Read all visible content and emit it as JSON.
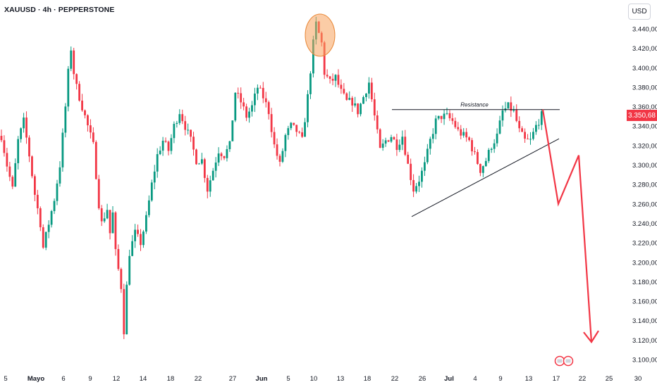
{
  "symbol": {
    "ticker": "XAUUSD",
    "timeframe": "4h",
    "broker": "PEPPERSTONE",
    "separator": "·"
  },
  "currency_label": "USD",
  "current_price_label": "3.350,68",
  "colors": {
    "up_candle": "#089981",
    "down_candle": "#f23645",
    "arrow": "#f23645",
    "highlight_fill": "#f7a35c",
    "price_badge": "#f23645",
    "trendline": "#131722"
  },
  "chart_data": {
    "type": "candlestick",
    "ylim": [
      3094,
      3464
    ],
    "y_ticks": [
      {
        "value": 3440,
        "label": "3.440,00"
      },
      {
        "value": 3420,
        "label": "3.420,00"
      },
      {
        "value": 3400,
        "label": "3.400,00"
      },
      {
        "value": 3380,
        "label": "3.380,00"
      },
      {
        "value": 3360,
        "label": "3.360,00"
      },
      {
        "value": 3340,
        "label": "3.340,00"
      },
      {
        "value": 3320,
        "label": "3.320,00"
      },
      {
        "value": 3300,
        "label": "3.300,00"
      },
      {
        "value": 3280,
        "label": "3.280,00"
      },
      {
        "value": 3260,
        "label": "3.260,00"
      },
      {
        "value": 3240,
        "label": "3.240,00"
      },
      {
        "value": 3220,
        "label": "3.220,00"
      },
      {
        "value": 3200,
        "label": "3.200,00"
      },
      {
        "value": 3180,
        "label": "3.180,00"
      },
      {
        "value": 3160,
        "label": "3.160,00"
      },
      {
        "value": 3140,
        "label": "3.140,00"
      },
      {
        "value": 3120,
        "label": "3.120,00"
      },
      {
        "value": 3100,
        "label": "3.100,00"
      }
    ],
    "x_ticks": [
      {
        "label": "5",
        "bold": false
      },
      {
        "label": "Mayo",
        "bold": true
      },
      {
        "label": "6",
        "bold": false
      },
      {
        "label": "9",
        "bold": false
      },
      {
        "label": "12",
        "bold": false
      },
      {
        "label": "14",
        "bold": false
      },
      {
        "label": "18",
        "bold": false
      },
      {
        "label": "22",
        "bold": false
      },
      {
        "label": "27",
        "bold": false
      },
      {
        "label": "Jun",
        "bold": true
      },
      {
        "label": "5",
        "bold": false
      },
      {
        "label": "10",
        "bold": false
      },
      {
        "label": "13",
        "bold": false
      },
      {
        "label": "18",
        "bold": false
      },
      {
        "label": "22",
        "bold": false
      },
      {
        "label": "26",
        "bold": false
      },
      {
        "label": "Jul",
        "bold": true
      },
      {
        "label": "4",
        "bold": false
      },
      {
        "label": "9",
        "bold": false
      },
      {
        "label": "13",
        "bold": false
      },
      {
        "label": "17",
        "bold": false
      },
      {
        "label": "22",
        "bold": false
      },
      {
        "label": "25",
        "bold": false
      },
      {
        "label": "30",
        "bold": false
      }
    ],
    "price_path": [
      {
        "t": 0,
        "p": 3330
      },
      {
        "t": 2,
        "p": 3300
      },
      {
        "t": 4,
        "p": 3275
      },
      {
        "t": 6,
        "p": 3325
      },
      {
        "t": 8,
        "p": 3345
      },
      {
        "t": 10,
        "p": 3310
      },
      {
        "t": 12,
        "p": 3270
      },
      {
        "t": 14,
        "p": 3240
      },
      {
        "t": 15,
        "p": 3215
      },
      {
        "t": 17,
        "p": 3240
      },
      {
        "t": 19,
        "p": 3265
      },
      {
        "t": 21,
        "p": 3300
      },
      {
        "t": 23,
        "p": 3360
      },
      {
        "t": 24,
        "p": 3395
      },
      {
        "t": 25,
        "p": 3420
      },
      {
        "t": 26,
        "p": 3395
      },
      {
        "t": 27,
        "p": 3380
      },
      {
        "t": 29,
        "p": 3360
      },
      {
        "t": 31,
        "p": 3340
      },
      {
        "t": 33,
        "p": 3320
      },
      {
        "t": 35,
        "p": 3260
      },
      {
        "t": 36,
        "p": 3240
      },
      {
        "t": 38,
        "p": 3255
      },
      {
        "t": 39,
        "p": 3230
      },
      {
        "t": 40,
        "p": 3250
      },
      {
        "t": 41,
        "p": 3210
      },
      {
        "t": 43,
        "p": 3175
      },
      {
        "t": 44,
        "p": 3130
      },
      {
        "t": 45,
        "p": 3175
      },
      {
        "t": 46,
        "p": 3210
      },
      {
        "t": 48,
        "p": 3230
      },
      {
        "t": 50,
        "p": 3220
      },
      {
        "t": 52,
        "p": 3245
      },
      {
        "t": 54,
        "p": 3280
      },
      {
        "t": 56,
        "p": 3310
      },
      {
        "t": 58,
        "p": 3325
      },
      {
        "t": 60,
        "p": 3315
      },
      {
        "t": 62,
        "p": 3340
      },
      {
        "t": 64,
        "p": 3355
      },
      {
        "t": 66,
        "p": 3340
      },
      {
        "t": 68,
        "p": 3325
      },
      {
        "t": 70,
        "p": 3305
      },
      {
        "t": 72,
        "p": 3305
      },
      {
        "t": 74,
        "p": 3275
      },
      {
        "t": 76,
        "p": 3295
      },
      {
        "t": 78,
        "p": 3315
      },
      {
        "t": 80,
        "p": 3310
      },
      {
        "t": 82,
        "p": 3320
      },
      {
        "t": 84,
        "p": 3375
      },
      {
        "t": 86,
        "p": 3365
      },
      {
        "t": 88,
        "p": 3350
      },
      {
        "t": 90,
        "p": 3360
      },
      {
        "t": 92,
        "p": 3380
      },
      {
        "t": 94,
        "p": 3370
      },
      {
        "t": 96,
        "p": 3355
      },
      {
        "t": 98,
        "p": 3320
      },
      {
        "t": 100,
        "p": 3300
      },
      {
        "t": 102,
        "p": 3330
      },
      {
        "t": 104,
        "p": 3340
      },
      {
        "t": 106,
        "p": 3335
      },
      {
        "t": 108,
        "p": 3325
      },
      {
        "t": 110,
        "p": 3370
      },
      {
        "t": 112,
        "p": 3425
      },
      {
        "t": 113,
        "p": 3445
      },
      {
        "t": 114,
        "p": 3435
      },
      {
        "t": 115,
        "p": 3425
      },
      {
        "t": 116,
        "p": 3395
      },
      {
        "t": 118,
        "p": 3385
      },
      {
        "t": 120,
        "p": 3390
      },
      {
        "t": 122,
        "p": 3375
      },
      {
        "t": 124,
        "p": 3365
      },
      {
        "t": 126,
        "p": 3365
      },
      {
        "t": 128,
        "p": 3355
      },
      {
        "t": 130,
        "p": 3370
      },
      {
        "t": 132,
        "p": 3385
      },
      {
        "t": 134,
        "p": 3350
      },
      {
        "t": 136,
        "p": 3315
      },
      {
        "t": 138,
        "p": 3325
      },
      {
        "t": 140,
        "p": 3330
      },
      {
        "t": 142,
        "p": 3320
      },
      {
        "t": 144,
        "p": 3330
      },
      {
        "t": 146,
        "p": 3300
      },
      {
        "t": 148,
        "p": 3275
      },
      {
        "t": 150,
        "p": 3285
      },
      {
        "t": 152,
        "p": 3300
      },
      {
        "t": 154,
        "p": 3325
      },
      {
        "t": 156,
        "p": 3345
      },
      {
        "t": 158,
        "p": 3350
      },
      {
        "t": 160,
        "p": 3350
      },
      {
        "t": 162,
        "p": 3345
      },
      {
        "t": 164,
        "p": 3335
      },
      {
        "t": 166,
        "p": 3330
      },
      {
        "t": 168,
        "p": 3325
      },
      {
        "t": 170,
        "p": 3310
      },
      {
        "t": 172,
        "p": 3295
      },
      {
        "t": 174,
        "p": 3305
      },
      {
        "t": 176,
        "p": 3320
      },
      {
        "t": 178,
        "p": 3330
      },
      {
        "t": 180,
        "p": 3355
      },
      {
        "t": 182,
        "p": 3360
      },
      {
        "t": 184,
        "p": 3355
      },
      {
        "t": 186,
        "p": 3335
      },
      {
        "t": 188,
        "p": 3325
      },
      {
        "t": 190,
        "p": 3325
      },
      {
        "t": 192,
        "p": 3340
      },
      {
        "t": 194,
        "p": 3351
      }
    ],
    "annotations": {
      "resistance_label": "Resistance",
      "resistance_level": 3357,
      "support_line": [
        {
          "date": "Jun 27",
          "value": 3247
        },
        {
          "date": "Jul 21",
          "value": 3327
        }
      ],
      "projection_arrow": [
        {
          "date": "Jul 19",
          "value": 3357
        },
        {
          "date": "Jul 21",
          "value": 3260
        },
        {
          "date": "Jul 22",
          "value": 3310
        },
        {
          "date": "Jul 24",
          "value": 3118
        }
      ],
      "highlight_circle_top": 3440
    }
  }
}
